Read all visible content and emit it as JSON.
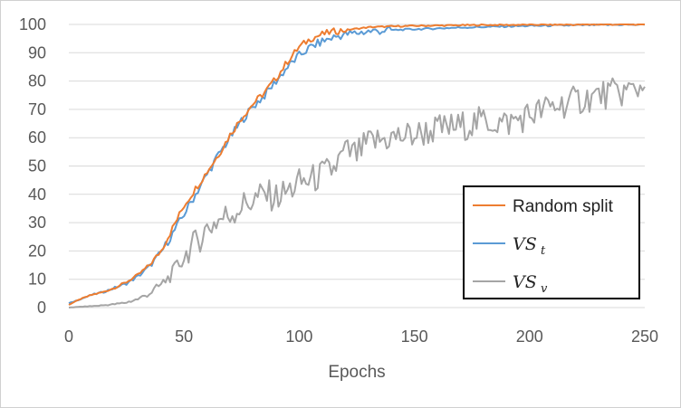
{
  "chart_data": {
    "type": "line",
    "xlabel": "Epochs",
    "ylabel": "",
    "xlim": [
      0,
      250
    ],
    "ylim": [
      0,
      100
    ],
    "xticks": [
      "0",
      "50",
      "100",
      "150",
      "200",
      "250"
    ],
    "yticks": [
      "0",
      "10",
      "20",
      "30",
      "40",
      "50",
      "60",
      "70",
      "80",
      "90",
      "100"
    ],
    "grid": "horizontal",
    "legend_position": "bottom-right",
    "series": [
      {
        "name": "Random split",
        "legend_main": "Random split",
        "legend_sub": "",
        "color": "#ED7D31",
        "x": [
          0,
          5,
          10,
          15,
          20,
          25,
          30,
          35,
          40,
          45,
          50,
          55,
          60,
          65,
          70,
          75,
          80,
          85,
          90,
          95,
          100,
          105,
          110,
          115,
          120,
          125,
          130,
          140,
          150,
          160,
          170,
          180,
          190,
          200,
          210,
          220,
          230,
          240,
          250
        ],
        "y": [
          1,
          3,
          4.5,
          5.5,
          7,
          9,
          11.5,
          15,
          20,
          28,
          36,
          42,
          48,
          54,
          61,
          67,
          72,
          76,
          81,
          87,
          92,
          95,
          96.5,
          97.5,
          98,
          98.5,
          99,
          99.3,
          99.5,
          99.6,
          99.7,
          99.8,
          99.8,
          99.9,
          99.9,
          99.9,
          100,
          100,
          100
        ]
      },
      {
        "name": "VSt",
        "legend_main": "VS",
        "legend_sub": "t",
        "color": "#5B9BD5",
        "x": [
          0,
          5,
          10,
          15,
          20,
          25,
          30,
          35,
          40,
          45,
          50,
          55,
          60,
          65,
          70,
          75,
          80,
          85,
          90,
          95,
          100,
          105,
          110,
          115,
          120,
          125,
          130,
          140,
          150,
          160,
          170,
          180,
          190,
          200,
          210,
          220,
          230,
          240,
          250
        ],
        "y": [
          1.5,
          3,
          4.5,
          5.5,
          7,
          8.5,
          11,
          14.5,
          19.5,
          26,
          33,
          40,
          47,
          54,
          60,
          66,
          71,
          75,
          80,
          85,
          89,
          92,
          94,
          95.5,
          96.5,
          97,
          97.5,
          98,
          98.3,
          98.6,
          98.9,
          99.1,
          99.3,
          99.5,
          99.6,
          99.7,
          99.8,
          99.9,
          99.9
        ]
      },
      {
        "name": "VSv",
        "legend_main": "VS",
        "legend_sub": "v",
        "color": "#A5A5A5",
        "x": [
          0,
          5,
          10,
          15,
          20,
          25,
          30,
          35,
          40,
          45,
          50,
          55,
          60,
          65,
          70,
          75,
          80,
          85,
          90,
          95,
          100,
          105,
          110,
          115,
          120,
          125,
          130,
          135,
          140,
          150,
          160,
          170,
          180,
          190,
          200,
          210,
          220,
          230,
          240,
          250
        ],
        "y": [
          0,
          0.3,
          0.5,
          0.8,
          1.2,
          1.8,
          3,
          5,
          8,
          12,
          18,
          23,
          28,
          31,
          33,
          36,
          38,
          40,
          39,
          41,
          44,
          45,
          47,
          49,
          55,
          54,
          58,
          59,
          60,
          61,
          63,
          64,
          66,
          65,
          68,
          71,
          73,
          75,
          76,
          78
        ]
      }
    ]
  }
}
